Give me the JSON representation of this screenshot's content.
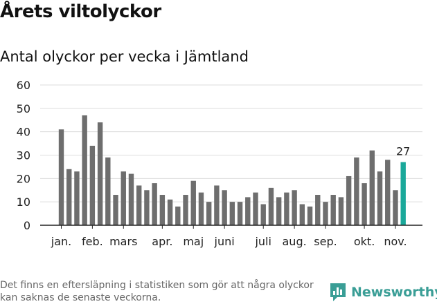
{
  "header": {
    "title": "Årets viltolyckor",
    "subtitle": "Antal olyckor per vecka i Jämtland"
  },
  "footnote": "Det finns en eftersläpning i statistiken som gör att några olyckor kan saknas de senaste veckorna.",
  "brand": {
    "name": "Newsworthy",
    "icon": "newsworthy-logo-icon",
    "color": "#3a9e96"
  },
  "chart_data": {
    "type": "bar",
    "title": "Antal olyckor per vecka i Jämtland",
    "xlabel": "",
    "ylabel": "",
    "ylim": [
      0,
      60
    ],
    "yticks": [
      0,
      10,
      20,
      30,
      40,
      50,
      60
    ],
    "grid": true,
    "x_ticks": [
      {
        "label": "jan.",
        "week": 1
      },
      {
        "label": "feb.",
        "week": 5
      },
      {
        "label": "mars",
        "week": 9
      },
      {
        "label": "apr.",
        "week": 14
      },
      {
        "label": "maj",
        "week": 18
      },
      {
        "label": "juni",
        "week": 22
      },
      {
        "label": "juli",
        "week": 27
      },
      {
        "label": "aug.",
        "week": 31
      },
      {
        "label": "sep.",
        "week": 35
      },
      {
        "label": "okt.",
        "week": 40
      },
      {
        "label": "nov.",
        "week": 44
      }
    ],
    "weeks": [
      1,
      2,
      3,
      4,
      5,
      6,
      7,
      8,
      9,
      10,
      11,
      12,
      13,
      14,
      15,
      16,
      17,
      18,
      19,
      20,
      21,
      22,
      23,
      24,
      25,
      26,
      27,
      28,
      29,
      30,
      31,
      32,
      33,
      34,
      35,
      36,
      37,
      38,
      39,
      40,
      41,
      42,
      43,
      44,
      45
    ],
    "values": [
      41,
      24,
      23,
      47,
      34,
      44,
      29,
      13,
      23,
      22,
      17,
      15,
      18,
      13,
      11,
      8,
      13,
      19,
      14,
      10,
      17,
      15,
      10,
      10,
      12,
      14,
      9,
      16,
      12,
      14,
      15,
      9,
      8,
      13,
      10,
      13,
      12,
      21,
      29,
      18,
      32,
      23,
      28,
      15,
      27
    ],
    "colors": {
      "bar": "#6e6e6e",
      "highlight": "#1aa89a"
    },
    "highlight_index": 44,
    "annotation": {
      "text": "27",
      "index": 44
    }
  }
}
